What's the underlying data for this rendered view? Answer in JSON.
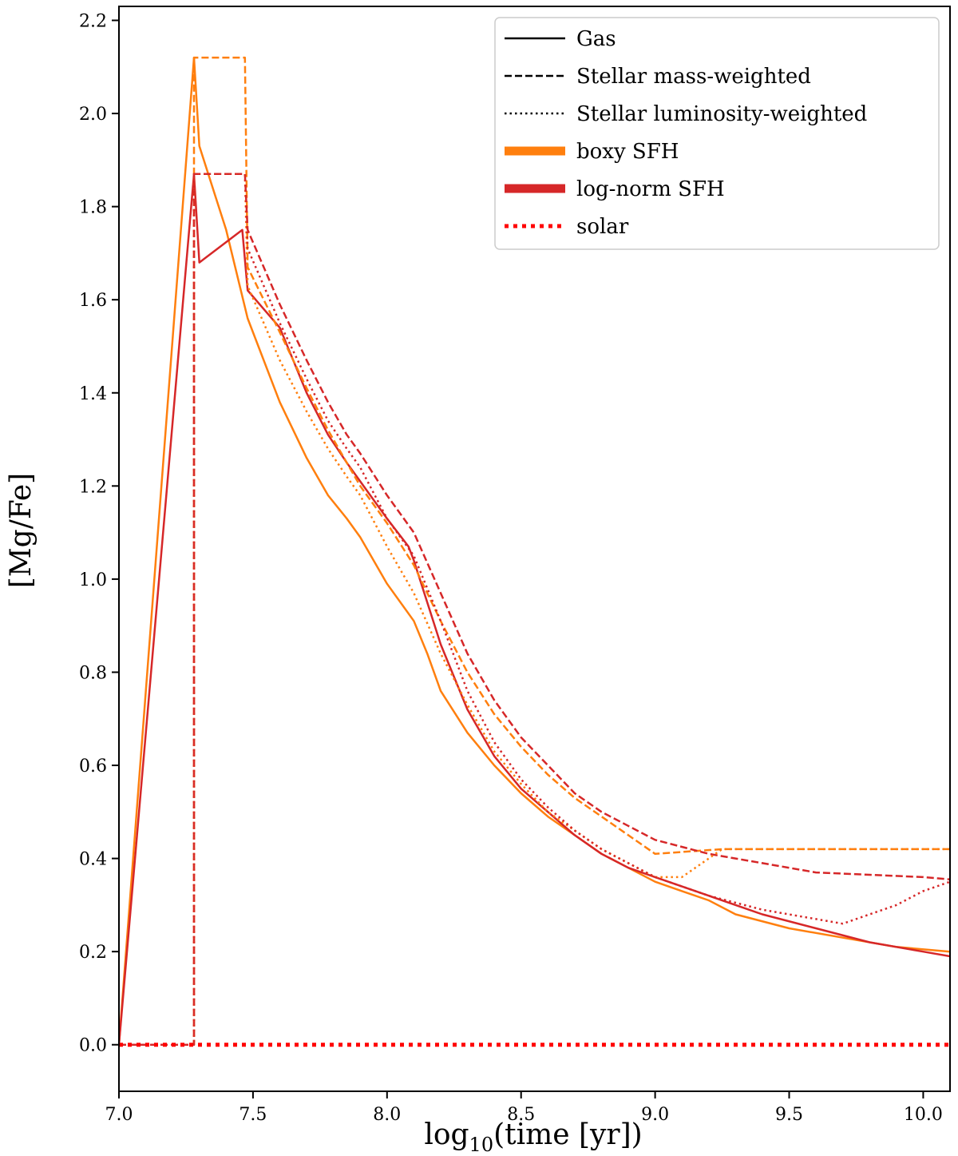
{
  "chart_data": {
    "type": "line",
    "title": "",
    "xlabel_main": "log",
    "xlabel_sub": "10",
    "xlabel_rest": "(time [yr])",
    "ylabel": "[Mg/Fe]",
    "xlim": [
      7.0,
      10.1
    ],
    "ylim": [
      -0.1,
      2.23
    ],
    "xticks": [
      "7.0",
      "7.5",
      "8.0",
      "8.5",
      "9.0",
      "9.5",
      "10.0"
    ],
    "xtick_values": [
      7.0,
      7.5,
      8.0,
      8.5,
      9.0,
      9.5,
      10.0
    ],
    "yticks": [
      "0.0",
      "0.2",
      "0.4",
      "0.6",
      "0.8",
      "1.0",
      "1.2",
      "1.4",
      "1.6",
      "1.8",
      "2.0",
      "2.2"
    ],
    "ytick_values": [
      0.0,
      0.2,
      0.4,
      0.6,
      0.8,
      1.0,
      1.2,
      1.4,
      1.6,
      1.8,
      2.0,
      2.2
    ],
    "legend_position": "top-right",
    "legend": [
      {
        "label": "Gas",
        "color": "#000000",
        "style": "solid"
      },
      {
        "label": "Stellar mass-weighted",
        "color": "#000000",
        "style": "dashed"
      },
      {
        "label": "Stellar luminosity-weighted",
        "color": "#000000",
        "style": "dotted"
      },
      {
        "label": "boxy SFH",
        "color": "#ff7f0e",
        "style": "thick"
      },
      {
        "label": "log-norm SFH",
        "color": "#d62728",
        "style": "thick"
      },
      {
        "label": "solar",
        "color": "#ff0000",
        "style": "thickdotted"
      }
    ],
    "series": [
      {
        "name": "boxy SFH gas",
        "color": "#ff7f0e",
        "style": "solid",
        "x": [
          7.0,
          7.28,
          7.3,
          7.4,
          7.48,
          7.6,
          7.7,
          7.78,
          7.85,
          7.9,
          8.0,
          8.1,
          8.15,
          8.2,
          8.3,
          8.4,
          8.5,
          8.6,
          8.7,
          8.8,
          8.9,
          9.0,
          9.1,
          9.2,
          9.3,
          9.5,
          9.7,
          9.9,
          10.1
        ],
        "y": [
          0.0,
          2.12,
          1.93,
          1.75,
          1.56,
          1.38,
          1.26,
          1.18,
          1.13,
          1.09,
          0.99,
          0.91,
          0.84,
          0.76,
          0.67,
          0.6,
          0.54,
          0.49,
          0.45,
          0.41,
          0.38,
          0.35,
          0.33,
          0.31,
          0.28,
          0.25,
          0.23,
          0.21,
          0.2
        ]
      },
      {
        "name": "log-norm SFH gas",
        "color": "#d62728",
        "style": "solid",
        "x": [
          7.0,
          7.28,
          7.3,
          7.46,
          7.48,
          7.6,
          7.7,
          7.78,
          7.85,
          7.9,
          8.0,
          8.08,
          8.1,
          8.2,
          8.3,
          8.4,
          8.5,
          8.6,
          8.7,
          8.8,
          8.9,
          9.0,
          9.2,
          9.4,
          9.6,
          9.8,
          10.0,
          10.1
        ],
        "y": [
          0.0,
          1.87,
          1.68,
          1.75,
          1.62,
          1.54,
          1.4,
          1.31,
          1.25,
          1.21,
          1.13,
          1.07,
          1.04,
          0.86,
          0.72,
          0.62,
          0.55,
          0.5,
          0.45,
          0.41,
          0.38,
          0.36,
          0.32,
          0.28,
          0.25,
          0.22,
          0.2,
          0.19
        ]
      },
      {
        "name": "boxy SFH stellar mass-weighted",
        "color": "#ff7f0e",
        "style": "dashed",
        "x": [
          7.0,
          7.28,
          7.28,
          7.3,
          7.47,
          7.48,
          7.6,
          7.7,
          7.78,
          7.85,
          7.9,
          8.0,
          8.1,
          8.2,
          8.3,
          8.4,
          8.5,
          8.6,
          8.7,
          8.8,
          8.9,
          9.0,
          9.25,
          9.5,
          9.8,
          10.1
        ],
        "y": [
          0.0,
          0.0,
          2.12,
          2.12,
          2.12,
          1.67,
          1.53,
          1.41,
          1.32,
          1.25,
          1.2,
          1.12,
          1.03,
          0.91,
          0.8,
          0.71,
          0.64,
          0.58,
          0.53,
          0.49,
          0.45,
          0.41,
          0.42,
          0.42,
          0.42,
          0.42
        ]
      },
      {
        "name": "log-norm SFH stellar mass-weighted",
        "color": "#d62728",
        "style": "dashed",
        "x": [
          7.0,
          7.28,
          7.28,
          7.3,
          7.47,
          7.48,
          7.6,
          7.7,
          7.78,
          7.85,
          7.9,
          8.0,
          8.1,
          8.2,
          8.3,
          8.4,
          8.5,
          8.6,
          8.7,
          8.8,
          8.9,
          9.0,
          9.2,
          9.4,
          9.6,
          9.8,
          10.0,
          10.1
        ],
        "y": [
          0.0,
          0.0,
          1.87,
          1.87,
          1.87,
          1.75,
          1.59,
          1.47,
          1.38,
          1.31,
          1.27,
          1.18,
          1.1,
          0.97,
          0.84,
          0.74,
          0.66,
          0.6,
          0.54,
          0.5,
          0.47,
          0.44,
          0.41,
          0.39,
          0.37,
          0.365,
          0.36,
          0.355
        ]
      },
      {
        "name": "boxy SFH stellar luminosity-weighted",
        "color": "#ff7f0e",
        "style": "dotted",
        "x": [
          7.0,
          7.28,
          7.28,
          7.3,
          7.47,
          7.48,
          7.6,
          7.7,
          7.78,
          7.85,
          7.9,
          8.0,
          8.1,
          8.2,
          8.3,
          8.4,
          8.5,
          8.6,
          8.7,
          8.8,
          8.9,
          9.0,
          9.1,
          9.25,
          9.5,
          10.1
        ],
        "y": [
          0.0,
          0.0,
          1.87,
          1.87,
          1.87,
          1.63,
          1.47,
          1.36,
          1.28,
          1.22,
          1.18,
          1.07,
          0.97,
          0.84,
          0.73,
          0.63,
          0.56,
          0.5,
          0.46,
          0.42,
          0.39,
          0.36,
          0.36,
          0.42,
          0.42,
          0.42
        ]
      },
      {
        "name": "log-norm SFH stellar luminosity-weighted",
        "color": "#d62728",
        "style": "dotted",
        "x": [
          7.0,
          7.28,
          7.28,
          7.3,
          7.47,
          7.48,
          7.6,
          7.7,
          7.78,
          7.85,
          7.9,
          8.0,
          8.1,
          8.2,
          8.3,
          8.4,
          8.5,
          8.6,
          8.7,
          8.8,
          8.9,
          9.0,
          9.2,
          9.4,
          9.6,
          9.7,
          9.8,
          9.9,
          10.0,
          10.1
        ],
        "y": [
          0.0,
          0.0,
          1.87,
          1.87,
          1.87,
          1.71,
          1.55,
          1.43,
          1.34,
          1.28,
          1.24,
          1.13,
          1.05,
          0.91,
          0.76,
          0.65,
          0.57,
          0.51,
          0.46,
          0.42,
          0.39,
          0.36,
          0.32,
          0.29,
          0.27,
          0.26,
          0.28,
          0.3,
          0.33,
          0.35
        ]
      },
      {
        "name": "solar",
        "color": "#ff0000",
        "style": "thickdotted",
        "x": [
          7.0,
          10.1
        ],
        "y": [
          0.0,
          0.0
        ]
      }
    ]
  }
}
